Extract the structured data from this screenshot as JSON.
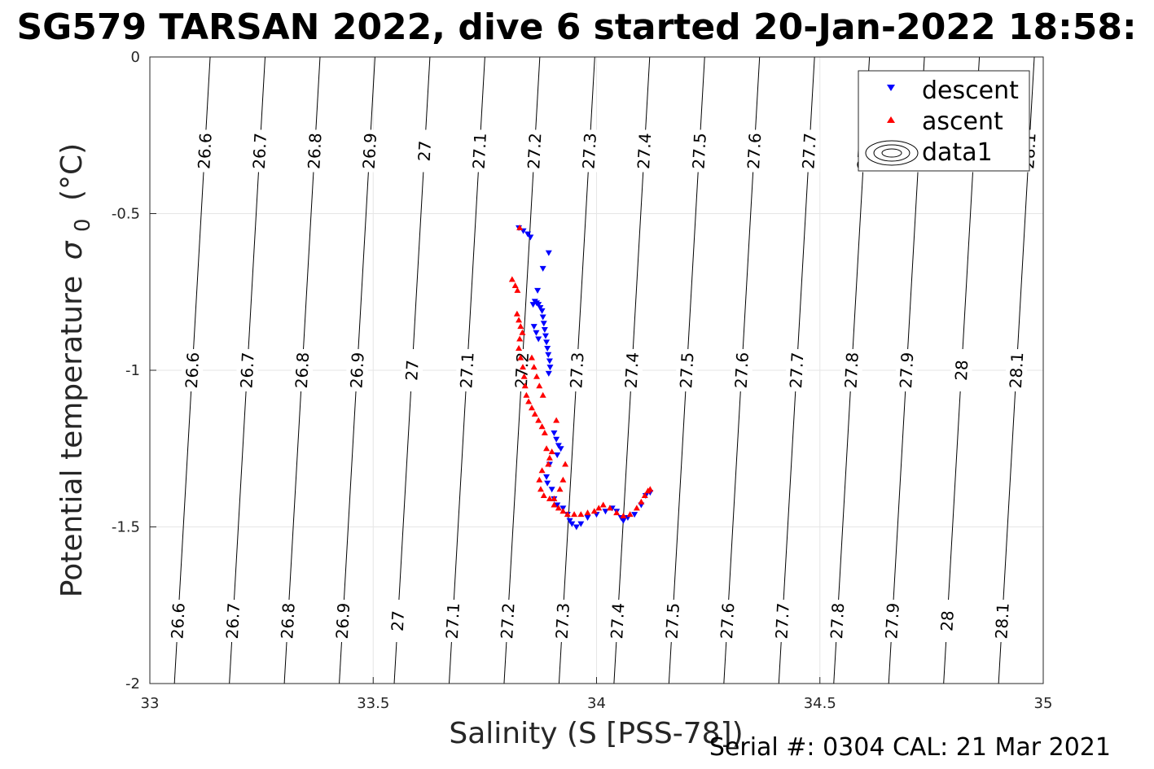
{
  "chart_data": {
    "type": "scatter",
    "title": "SG579 TARSAN 2022, dive 6 started 20-Jan-2022 18:58:",
    "xlabel": "Salinity (S [PSS-78])",
    "ylabel_main": "Potential temperature",
    "ylabel_symbol": "σ",
    "ylabel_subscript": "0",
    "ylabel_unit": "(°C)",
    "xlim": [
      33,
      35
    ],
    "ylim": [
      -2,
      0
    ],
    "x_ticks": [
      "33",
      "33.5",
      "34",
      "34.5",
      "35"
    ],
    "y_ticks": [
      "0",
      "-0.5",
      "-1",
      "-1.5",
      "-2"
    ],
    "grid": true,
    "legend_position": "top-right",
    "legend": [
      "descent",
      "ascent",
      "data1"
    ],
    "footnote": "Serial #: 0304  CAL: 21 Mar 2021",
    "colors": {
      "descent": "#0000ff",
      "ascent": "#ff0000",
      "contour": "#000000",
      "grid": "#e6e6e6"
    },
    "contour_lines": [
      {
        "x_bottom": 33.055,
        "x_top": 33.135,
        "label": "26.6"
      },
      {
        "x_bottom": 33.178,
        "x_top": 33.258,
        "label": "26.7"
      },
      {
        "x_bottom": 33.301,
        "x_top": 33.381,
        "label": "26.8"
      },
      {
        "x_bottom": 33.424,
        "x_top": 33.504,
        "label": "26.9"
      },
      {
        "x_bottom": 33.547,
        "x_top": 33.627,
        "label": "27"
      },
      {
        "x_bottom": 33.67,
        "x_top": 33.75,
        "label": "27.1"
      },
      {
        "x_bottom": 33.793,
        "x_top": 33.873,
        "label": "27.2"
      },
      {
        "x_bottom": 33.916,
        "x_top": 33.996,
        "label": "27.3"
      },
      {
        "x_bottom": 34.039,
        "x_top": 34.119,
        "label": "27.4"
      },
      {
        "x_bottom": 34.162,
        "x_top": 34.242,
        "label": "27.5"
      },
      {
        "x_bottom": 34.285,
        "x_top": 34.365,
        "label": "27.6"
      },
      {
        "x_bottom": 34.408,
        "x_top": 34.488,
        "label": "27.7"
      },
      {
        "x_bottom": 34.531,
        "x_top": 34.611,
        "label": "27.8"
      },
      {
        "x_bottom": 34.654,
        "x_top": 34.734,
        "label": "27.9"
      },
      {
        "x_bottom": 34.777,
        "x_top": 34.857,
        "label": "28"
      },
      {
        "x_bottom": 34.9,
        "x_top": 34.98,
        "label": "28.1"
      }
    ],
    "contour_label_temps": [
      -0.3,
      -1.0,
      -1.8
    ],
    "series": [
      {
        "name": "descent",
        "marker": "triangle-down",
        "points": [
          [
            33.826,
            -0.545
          ],
          [
            33.836,
            -0.555
          ],
          [
            33.846,
            -0.565
          ],
          [
            33.852,
            -0.575
          ],
          [
            33.893,
            -0.625
          ],
          [
            33.88,
            -0.675
          ],
          [
            33.868,
            -0.745
          ],
          [
            33.858,
            -0.79
          ],
          [
            33.862,
            -0.78
          ],
          [
            33.866,
            -0.785
          ],
          [
            33.87,
            -0.79
          ],
          [
            33.874,
            -0.8
          ],
          [
            33.878,
            -0.81
          ],
          [
            33.88,
            -0.83
          ],
          [
            33.882,
            -0.85
          ],
          [
            33.884,
            -0.87
          ],
          [
            33.886,
            -0.89
          ],
          [
            33.888,
            -0.91
          ],
          [
            33.89,
            -0.93
          ],
          [
            33.892,
            -0.95
          ],
          [
            33.895,
            -0.97
          ],
          [
            33.896,
            -0.99
          ],
          [
            33.893,
            -1.01
          ],
          [
            33.87,
            -0.9
          ],
          [
            33.865,
            -0.88
          ],
          [
            33.86,
            -0.86
          ],
          [
            33.905,
            -1.2
          ],
          [
            33.91,
            -1.22
          ],
          [
            33.915,
            -1.24
          ],
          [
            33.92,
            -1.25
          ],
          [
            33.912,
            -1.27
          ],
          [
            33.895,
            -1.3
          ],
          [
            33.888,
            -1.34
          ],
          [
            33.89,
            -1.36
          ],
          [
            33.9,
            -1.38
          ],
          [
            33.905,
            -1.41
          ],
          [
            33.912,
            -1.43
          ],
          [
            33.925,
            -1.44
          ],
          [
            33.935,
            -1.46
          ],
          [
            33.94,
            -1.48
          ],
          [
            33.945,
            -1.49
          ],
          [
            33.955,
            -1.5
          ],
          [
            33.965,
            -1.49
          ],
          [
            33.98,
            -1.47
          ],
          [
            34.0,
            -1.46
          ],
          [
            34.02,
            -1.45
          ],
          [
            34.035,
            -1.44
          ],
          [
            34.045,
            -1.45
          ],
          [
            34.055,
            -1.47
          ],
          [
            34.06,
            -1.48
          ],
          [
            34.07,
            -1.47
          ],
          [
            34.085,
            -1.46
          ],
          [
            34.1,
            -1.43
          ],
          [
            34.11,
            -1.4
          ],
          [
            34.12,
            -1.39
          ]
        ]
      },
      {
        "name": "ascent",
        "marker": "triangle-up",
        "points": [
          [
            33.828,
            -0.545
          ],
          [
            33.811,
            -0.71
          ],
          [
            33.818,
            -0.73
          ],
          [
            33.823,
            -0.745
          ],
          [
            33.822,
            -0.82
          ],
          [
            33.826,
            -0.84
          ],
          [
            33.83,
            -0.86
          ],
          [
            33.834,
            -0.88
          ],
          [
            33.828,
            -0.9
          ],
          [
            33.826,
            -0.93
          ],
          [
            33.83,
            -0.96
          ],
          [
            33.835,
            -0.99
          ],
          [
            33.838,
            -1.02
          ],
          [
            33.84,
            -1.05
          ],
          [
            33.843,
            -1.08
          ],
          [
            33.848,
            -1.1
          ],
          [
            33.855,
            -1.12
          ],
          [
            33.862,
            -1.14
          ],
          [
            33.87,
            -1.16
          ],
          [
            33.878,
            -1.18
          ],
          [
            33.855,
            -0.96
          ],
          [
            33.86,
            -0.99
          ],
          [
            33.866,
            -1.02
          ],
          [
            33.872,
            -1.05
          ],
          [
            33.88,
            -1.08
          ],
          [
            33.884,
            -1.2
          ],
          [
            33.888,
            -1.25
          ],
          [
            33.892,
            -1.3
          ],
          [
            33.878,
            -1.32
          ],
          [
            33.872,
            -1.35
          ],
          [
            33.875,
            -1.38
          ],
          [
            33.882,
            -1.4
          ],
          [
            33.895,
            -1.41
          ],
          [
            33.905,
            -1.43
          ],
          [
            33.915,
            -1.44
          ],
          [
            33.925,
            -1.45
          ],
          [
            33.935,
            -1.46
          ],
          [
            33.95,
            -1.46
          ],
          [
            33.965,
            -1.46
          ],
          [
            33.98,
            -1.455
          ],
          [
            33.995,
            -1.45
          ],
          [
            34.005,
            -1.44
          ],
          [
            34.015,
            -1.43
          ],
          [
            34.03,
            -1.44
          ],
          [
            34.045,
            -1.455
          ],
          [
            34.06,
            -1.465
          ],
          [
            34.075,
            -1.46
          ],
          [
            34.09,
            -1.44
          ],
          [
            34.1,
            -1.42
          ],
          [
            34.108,
            -1.4
          ],
          [
            34.115,
            -1.385
          ],
          [
            34.12,
            -1.38
          ],
          [
            33.93,
            -1.3
          ],
          [
            33.925,
            -1.35
          ],
          [
            33.918,
            -1.38
          ],
          [
            33.905,
            -1.41
          ],
          [
            33.9,
            -1.26
          ],
          [
            33.895,
            -1.28
          ],
          [
            33.91,
            -1.16
          ]
        ]
      }
    ]
  }
}
